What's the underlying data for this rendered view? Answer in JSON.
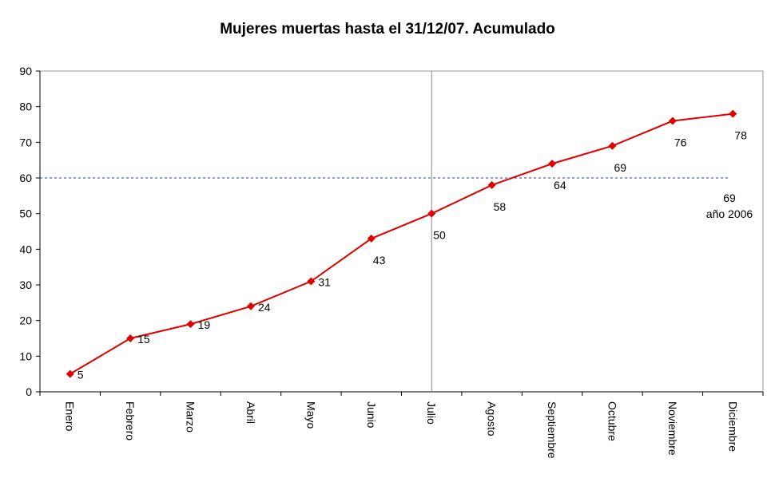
{
  "chart_data": {
    "type": "line",
    "title": "Mujeres muertas hasta el 31/12/07. Acumulado",
    "categories": [
      "Enero",
      "Febrero",
      "Marzo",
      "Abril",
      "Mayo",
      "Junio",
      "Julio",
      "Agosto",
      "Septiembre",
      "Octubre",
      "Noviembre",
      "Diciembre"
    ],
    "series": [
      {
        "name": "Acumulado",
        "color": "#e00000",
        "values": [
          5,
          15,
          19,
          24,
          31,
          43,
          50,
          58,
          64,
          69,
          76,
          78
        ]
      }
    ],
    "ylim": [
      0,
      90
    ],
    "yticks": [
      0,
      10,
      20,
      30,
      40,
      50,
      60,
      70,
      80,
      90
    ],
    "reference_line_value": 60,
    "reference_line_color": "#1f3f9f",
    "vertical_line_category": "Julio",
    "annotations": [
      "69",
      "año 2006"
    ]
  }
}
